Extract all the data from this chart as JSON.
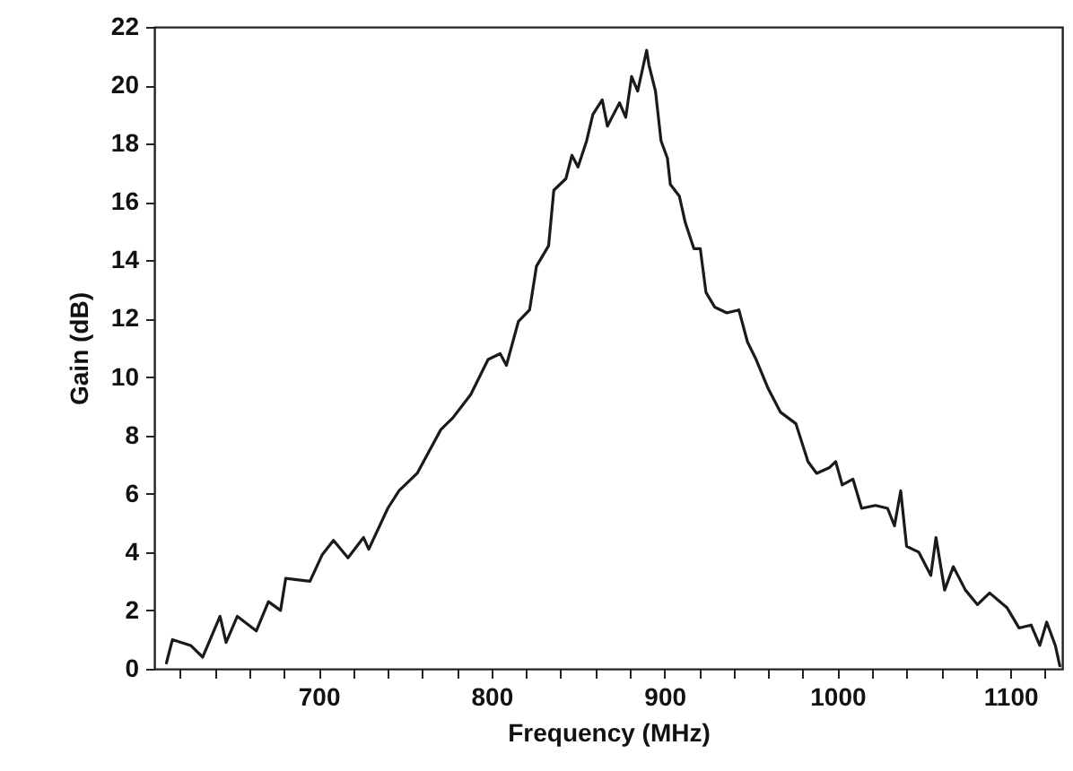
{
  "chart_data": {
    "type": "line",
    "xlabel": "Frequency (MHz)",
    "ylabel": "Gain (dB)",
    "xlim": [
      605,
      1130
    ],
    "xticks": [
      {
        "value": 620,
        "label": null
      },
      {
        "value": 640,
        "label": null
      },
      {
        "value": 660,
        "label": null
      },
      {
        "value": 680,
        "label": null
      },
      700,
      {
        "value": 720,
        "label": null
      },
      {
        "value": 740,
        "label": null
      },
      {
        "value": 760,
        "label": null
      },
      {
        "value": 780,
        "label": null
      },
      800,
      {
        "value": 820,
        "label": null
      },
      {
        "value": 840,
        "label": null
      },
      {
        "value": 860,
        "label": null
      },
      {
        "value": 880,
        "label": null
      },
      900,
      {
        "value": 920,
        "label": null
      },
      {
        "value": 940,
        "label": null
      },
      {
        "value": 960,
        "label": null
      },
      {
        "value": 980,
        "label": null
      },
      1000,
      {
        "value": 1020,
        "label": null
      },
      {
        "value": 1040,
        "label": null
      },
      {
        "value": 1060,
        "label": null
      },
      {
        "value": 1080,
        "label": null
      },
      1100,
      {
        "value": 1120,
        "label": null
      }
    ],
    "ylim": [
      0,
      22
    ],
    "yticks": [
      0,
      2,
      4,
      6,
      8,
      10,
      12,
      14,
      16,
      18,
      20,
      22
    ],
    "grid": false,
    "marker": "none",
    "line_style": "solid",
    "series": [
      {
        "color": "#1a1a1a",
        "x": [
          612,
          615.5,
          626,
          633,
          643,
          646.5,
          653,
          664,
          671,
          678,
          681,
          695,
          702,
          708.6,
          717,
          726,
          729,
          740,
          746.5,
          757,
          770.7,
          777.6,
          788,
          798,
          805,
          808.6,
          815.5,
          822,
          826,
          833,
          836,
          843,
          846.5,
          850,
          855,
          858.6,
          864,
          867,
          874,
          877.6,
          881,
          884.5,
          889.7,
          891,
          894.8,
          898,
          901.7,
          903.4,
          908.6,
          912,
          917,
          920.7,
          924,
          929,
          936,
          943,
          948,
          953,
          960,
          967,
          976,
          983,
          988,
          995.5,
          999,
          1002.8,
          1009,
          1014,
          1022,
          1029,
          1033,
          1036.6,
          1040,
          1047,
          1054,
          1057,
          1062,
          1067,
          1074,
          1081,
          1088,
          1098,
          1105,
          1112,
          1117,
          1121,
          1126,
          1128.6
        ],
        "values": [
          0.2,
          1.0,
          0.8,
          0.4,
          1.8,
          0.9,
          1.8,
          1.3,
          2.3,
          2.0,
          3.1,
          3.0,
          3.9,
          4.4,
          3.8,
          4.5,
          4.1,
          5.5,
          6.1,
          6.7,
          8.2,
          8.6,
          9.4,
          10.6,
          10.8,
          10.4,
          11.9,
          12.3,
          13.8,
          14.5,
          16.4,
          16.8,
          17.6,
          17.2,
          18.1,
          19.0,
          19.5,
          18.6,
          19.4,
          18.9,
          20.3,
          19.8,
          21.2,
          20.7,
          19.8,
          18.1,
          17.5,
          16.6,
          16.2,
          15.3,
          14.4,
          14.4,
          12.9,
          12.4,
          12.2,
          12.3,
          11.2,
          10.6,
          9.6,
          8.8,
          8.4,
          7.1,
          6.7,
          6.9,
          7.1,
          6.3,
          6.5,
          5.5,
          5.6,
          5.5,
          4.9,
          6.1,
          4.2,
          4.0,
          3.2,
          4.5,
          2.7,
          3.5,
          2.7,
          2.2,
          2.6,
          2.1,
          1.4,
          1.5,
          0.8,
          1.6,
          0.8,
          0.1
        ]
      }
    ]
  }
}
